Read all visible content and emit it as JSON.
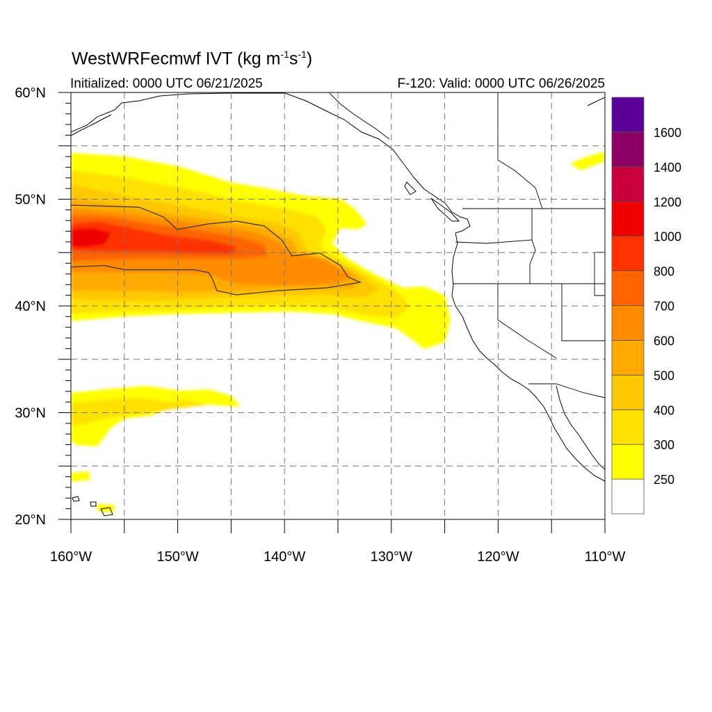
{
  "header": {
    "title_main": "WestWRFecmwf IVT (kg m",
    "title_sup1": "-1",
    "title_mid": "s",
    "title_sup2": "-1",
    "title_end": ")",
    "initialized": "Initialized: 0000 UTC 06/21/2025",
    "valid": "F-120: Valid: 0000 UTC 06/26/2025"
  },
  "map": {
    "lon_range": [
      -160,
      -110
    ],
    "lat_range": [
      20,
      60
    ],
    "lon_ticks": [
      {
        "value": -160,
        "label": "160°W"
      },
      {
        "value": -150,
        "label": "150°W"
      },
      {
        "value": -140,
        "label": "140°W"
      },
      {
        "value": -130,
        "label": "130°W"
      },
      {
        "value": -120,
        "label": "120°W"
      },
      {
        "value": -110,
        "label": "110°W"
      }
    ],
    "lat_ticks": [
      {
        "value": 60,
        "label": "60°N"
      },
      {
        "value": 50,
        "label": "50°N"
      },
      {
        "value": 40,
        "label": "40°N"
      },
      {
        "value": 30,
        "label": "30°N"
      },
      {
        "value": 20,
        "label": "20°N"
      }
    ],
    "grid": true,
    "contour_levels": [
      250,
      300,
      400,
      500,
      600,
      700,
      800,
      1000,
      1200,
      1400,
      1600
    ],
    "colors": [
      "#ffffff",
      "#ffff00",
      "#ffe100",
      "#ffc800",
      "#ffaa00",
      "#ff8c00",
      "#ff6400",
      "#ff3200",
      "#ee0000",
      "#c8003c",
      "#8c0064",
      "#5a0096"
    ]
  },
  "colorbar": {
    "labels": [
      "250",
      "300",
      "400",
      "500",
      "600",
      "700",
      "800",
      "1000",
      "1200",
      "1400",
      "1600"
    ]
  }
}
